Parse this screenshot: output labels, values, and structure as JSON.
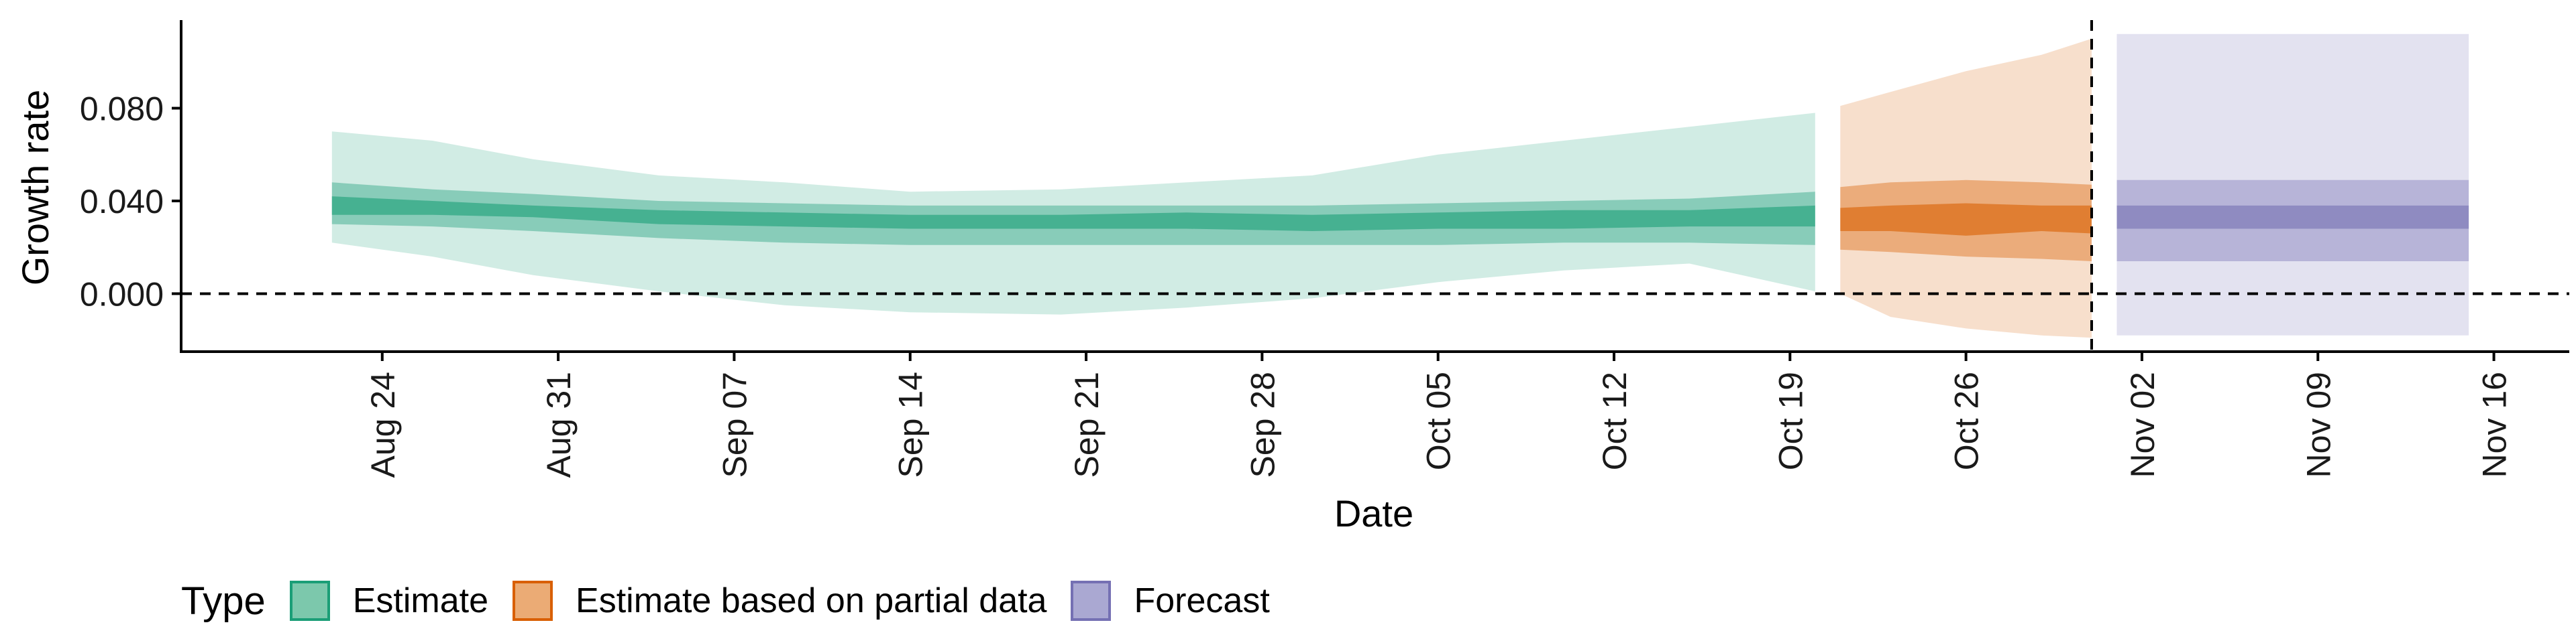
{
  "chart_data": {
    "type": "area",
    "xlabel": "Date",
    "ylabel": "Growth rate",
    "ylim": [
      -0.025,
      0.118
    ],
    "y_ticks": [
      0.0,
      0.04,
      0.08
    ],
    "y_tick_labels": [
      "0.000",
      "0.040",
      "0.080"
    ],
    "x_range": [
      "2020-08-16",
      "2020-11-19"
    ],
    "x_ticks": [
      "2020-08-24",
      "2020-08-31",
      "2020-09-07",
      "2020-09-14",
      "2020-09-21",
      "2020-09-28",
      "2020-10-05",
      "2020-10-12",
      "2020-10-19",
      "2020-10-26",
      "2020-11-02",
      "2020-11-09",
      "2020-11-16"
    ],
    "x_tick_labels": [
      "Aug 24",
      "Aug 31",
      "Sep 07",
      "Sep 14",
      "Sep 21",
      "Sep 28",
      "Oct 05",
      "Oct 12",
      "Oct 19",
      "Oct 26",
      "Nov 02",
      "Nov 09",
      "Nov 16"
    ],
    "reference_lines": {
      "y": 0.0,
      "x": "2020-10-31",
      "style": "dashed"
    },
    "grid": false,
    "legend": {
      "title": "Type",
      "position": "bottom-left",
      "items": [
        {
          "label": "Estimate",
          "fill": "#7cc8ac",
          "border": "#1b9e77"
        },
        {
          "label": "Estimate based on partial data",
          "fill": "#ebab75",
          "border": "#d95f02"
        },
        {
          "label": "Forecast",
          "fill": "#aaa8d2",
          "border": "#7570b3"
        }
      ]
    },
    "band_opacity": {
      "90%": 0.2,
      "50%": 0.4,
      "20%": 0.6
    },
    "series": [
      {
        "name": "Estimate",
        "color": "#1b9e77",
        "x": [
          "2020-08-22",
          "2020-08-26",
          "2020-08-30",
          "2020-09-04",
          "2020-09-09",
          "2020-09-14",
          "2020-09-20",
          "2020-09-25",
          "2020-09-30",
          "2020-10-05",
          "2020-10-10",
          "2020-10-15",
          "2020-10-20"
        ],
        "upper_90": [
          0.07,
          0.066,
          0.058,
          0.051,
          0.048,
          0.044,
          0.045,
          0.048,
          0.051,
          0.06,
          0.066,
          0.072,
          0.078
        ],
        "upper_50": [
          0.048,
          0.045,
          0.043,
          0.04,
          0.039,
          0.038,
          0.038,
          0.038,
          0.038,
          0.039,
          0.04,
          0.041,
          0.044
        ],
        "upper_20": [
          0.042,
          0.04,
          0.038,
          0.036,
          0.035,
          0.034,
          0.034,
          0.035,
          0.034,
          0.035,
          0.036,
          0.036,
          0.038
        ],
        "median": [
          0.038,
          0.037,
          0.035,
          0.033,
          0.032,
          0.031,
          0.031,
          0.031,
          0.03,
          0.031,
          0.031,
          0.032,
          0.033
        ],
        "lower_20": [
          0.034,
          0.034,
          0.033,
          0.03,
          0.029,
          0.028,
          0.028,
          0.028,
          0.027,
          0.028,
          0.028,
          0.029,
          0.029
        ],
        "lower_50": [
          0.03,
          0.029,
          0.027,
          0.024,
          0.022,
          0.021,
          0.021,
          0.021,
          0.021,
          0.021,
          0.022,
          0.022,
          0.021
        ],
        "lower_90": [
          0.022,
          0.016,
          0.008,
          0.001,
          -0.005,
          -0.008,
          -0.009,
          -0.006,
          -0.002,
          0.005,
          0.01,
          0.013,
          0.001
        ]
      },
      {
        "name": "Estimate based on partial data",
        "color": "#d95f02",
        "x": [
          "2020-10-21",
          "2020-10-23",
          "2020-10-26",
          "2020-10-29",
          "2020-10-31"
        ],
        "upper_90": [
          0.081,
          0.087,
          0.096,
          0.103,
          0.11
        ],
        "upper_50": [
          0.046,
          0.048,
          0.049,
          0.048,
          0.047
        ],
        "upper_20": [
          0.037,
          0.038,
          0.039,
          0.038,
          0.038
        ],
        "median": [
          0.032,
          0.033,
          0.031,
          0.033,
          0.033
        ],
        "lower_20": [
          0.027,
          0.027,
          0.025,
          0.027,
          0.026
        ],
        "lower_50": [
          0.019,
          0.018,
          0.016,
          0.015,
          0.014
        ],
        "lower_90": [
          0.0,
          -0.01,
          -0.015,
          -0.018,
          -0.019
        ]
      },
      {
        "name": "Forecast",
        "color": "#7570b3",
        "x": [
          "2020-11-01",
          "2020-11-15"
        ],
        "upper_90": [
          0.112,
          0.112
        ],
        "upper_50": [
          0.049,
          0.049
        ],
        "upper_20": [
          0.038,
          0.038
        ],
        "median": [
          0.033,
          0.033
        ],
        "lower_20": [
          0.028,
          0.028
        ],
        "lower_50": [
          0.014,
          0.014
        ],
        "lower_90": [
          -0.018,
          -0.018
        ]
      }
    ]
  }
}
